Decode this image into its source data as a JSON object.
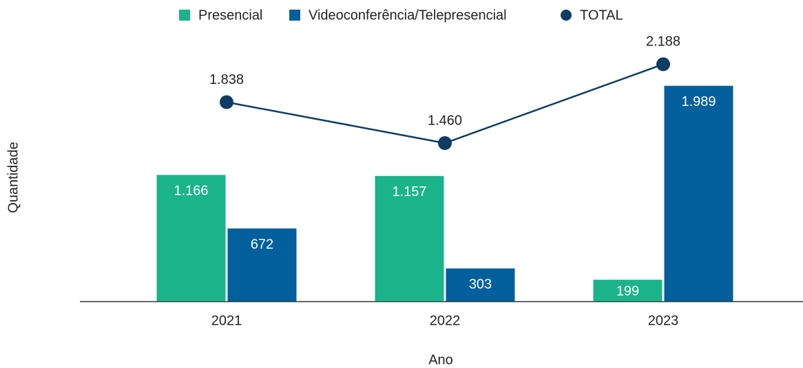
{
  "chart_data": {
    "type": "bar",
    "x_label": "Ano",
    "y_label": "Quantidade",
    "categories": [
      "2021",
      "2022",
      "2023"
    ],
    "series": [
      {
        "name": "Presencial",
        "color": "#1bb38a",
        "type": "bar",
        "values": [
          1166,
          1157,
          199
        ],
        "value_labels": [
          "1.166",
          "1.157",
          "199"
        ]
      },
      {
        "name": "Videoconferência/Telepresencial",
        "color": "#04609c",
        "type": "bar",
        "values": [
          672,
          303,
          1989
        ],
        "value_labels": [
          "672",
          "303",
          "1.989"
        ]
      },
      {
        "name": "TOTAL",
        "color": "#0d3d63",
        "type": "line",
        "values": [
          1838,
          1460,
          2188
        ],
        "value_labels": [
          "1.838",
          "1.460",
          "2.188"
        ]
      }
    ],
    "ylim": [
      0,
      2400
    ],
    "grid": false,
    "legend": "top"
  }
}
